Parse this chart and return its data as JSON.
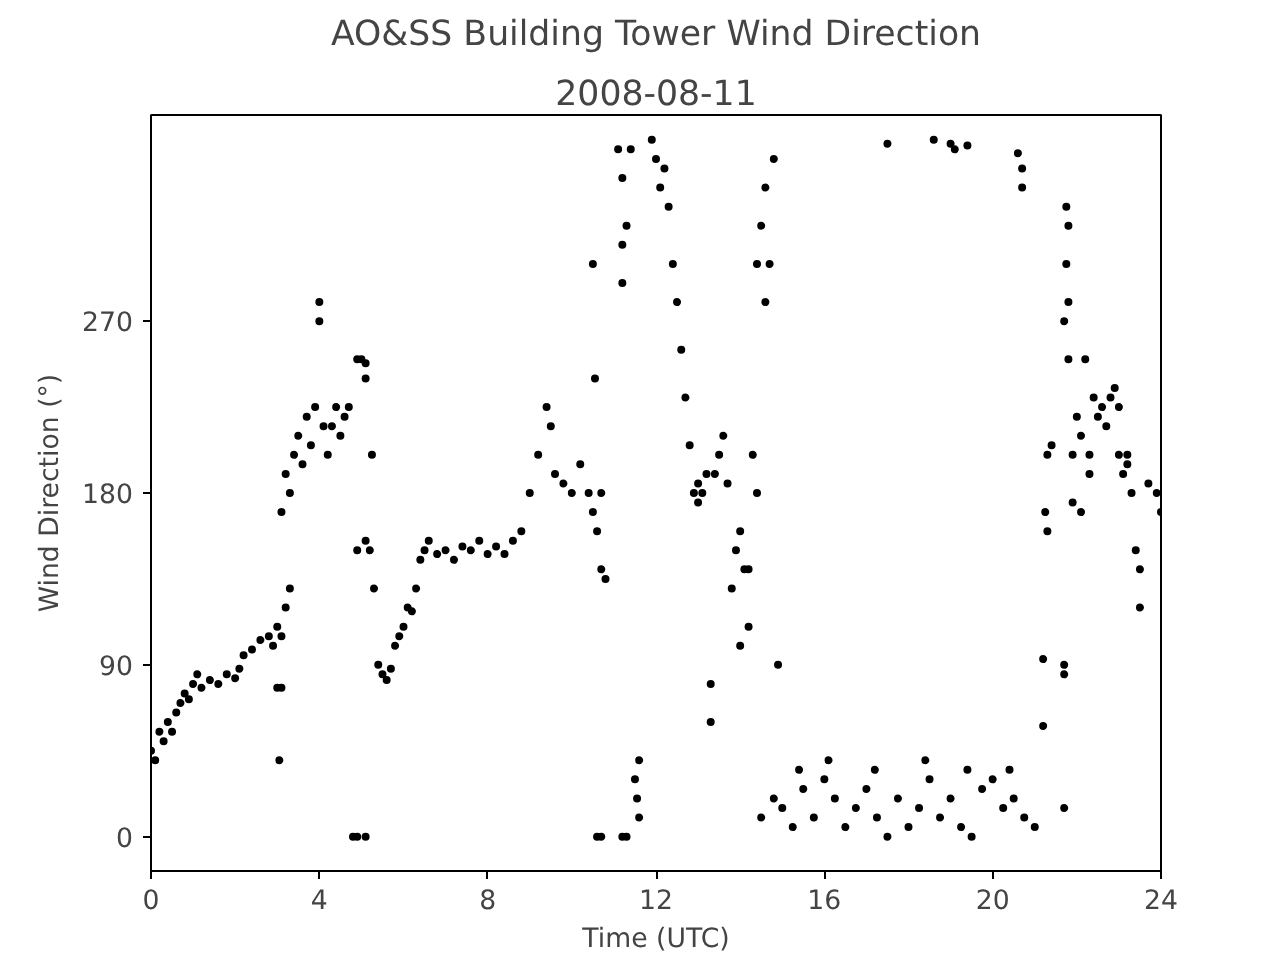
{
  "chart_data": {
    "type": "scatter",
    "title": "AO&SS Building Tower Wind Direction",
    "subtitle": "2008-08-11",
    "xlabel": "Time (UTC)",
    "ylabel": "Wind Direction (°)",
    "xlim": [
      0,
      24
    ],
    "ylim": [
      -18,
      378
    ],
    "xticks": [
      0,
      4,
      8,
      12,
      16,
      20,
      24
    ],
    "yticks": [
      0,
      90,
      180,
      270
    ],
    "grid": false,
    "marker": "circle",
    "series": [
      {
        "color": "#000000",
        "x": [
          0.0,
          0.1,
          0.2,
          0.3,
          0.4,
          0.5,
          0.6,
          0.7,
          0.8,
          0.9,
          1.0,
          1.1,
          1.2,
          1.4,
          1.6,
          1.8,
          2.0,
          2.1,
          2.2,
          2.4,
          2.6,
          2.8,
          2.9,
          3.0,
          3.1,
          3.05,
          3.0,
          3.1,
          3.2,
          3.3,
          3.1,
          3.2,
          3.3,
          3.4,
          3.5,
          3.6,
          3.7,
          3.8,
          3.9,
          4.0,
          4.0,
          4.1,
          4.2,
          4.3,
          4.4,
          4.5,
          4.6,
          4.7,
          4.8,
          4.9,
          5.1,
          4.9,
          5.0,
          5.1,
          5.1,
          4.9,
          5.1,
          5.2,
          5.25,
          5.3,
          5.4,
          5.5,
          5.6,
          5.7,
          5.8,
          5.9,
          6.0,
          6.1,
          6.2,
          6.3,
          6.4,
          6.5,
          6.6,
          6.8,
          7.0,
          7.2,
          7.4,
          7.6,
          7.8,
          8.0,
          8.2,
          8.4,
          8.6,
          8.8,
          9.0,
          9.2,
          9.4,
          9.5,
          9.6,
          9.8,
          10.0,
          10.2,
          10.4,
          10.5,
          10.6,
          10.7,
          10.8,
          10.7,
          10.5,
          10.55,
          10.6,
          10.7,
          11.2,
          11.3,
          11.2,
          11.1,
          11.2,
          11.4,
          11.3,
          11.2,
          11.5,
          11.6,
          11.55,
          11.6,
          11.9,
          12.0,
          12.1,
          12.2,
          12.3,
          12.4,
          12.5,
          12.6,
          12.7,
          12.8,
          12.9,
          13.0,
          13.1,
          13.2,
          13.0,
          13.3,
          13.4,
          13.5,
          13.6,
          13.7,
          13.8,
          13.9,
          14.0,
          14.1,
          14.2,
          14.3,
          14.4,
          14.2,
          13.3,
          14.0,
          14.4,
          14.5,
          14.6,
          14.7,
          14.8,
          14.6,
          14.9,
          14.8,
          14.5,
          15.0,
          15.25,
          15.5,
          15.75,
          16.0,
          16.25,
          16.5,
          16.75,
          17.0,
          17.25,
          17.5,
          17.75,
          18.0,
          18.25,
          18.5,
          18.75,
          19.0,
          19.25,
          19.5,
          19.75,
          20.0,
          20.25,
          20.5,
          20.75,
          21.0,
          15.4,
          16.1,
          17.2,
          18.4,
          19.4,
          20.4,
          17.5,
          18.6,
          19.0,
          19.1,
          19.4,
          20.6,
          20.7,
          20.7,
          21.2,
          21.2,
          21.25,
          21.3,
          21.3,
          21.4,
          21.7,
          21.7,
          21.7,
          21.75,
          21.8,
          21.75,
          21.8,
          21.8,
          21.7,
          21.9,
          22.0,
          22.1,
          22.2,
          22.3,
          22.4,
          22.5,
          22.6,
          22.7,
          22.8,
          22.9,
          23.0,
          23.1,
          23.2,
          23.3,
          23.4,
          23.5,
          23.5,
          23.7,
          23.9,
          24.0,
          22.3,
          22.1,
          21.9,
          23.0,
          23.2
        ],
        "values": [
          45,
          40,
          55,
          50,
          60,
          55,
          65,
          70,
          75,
          72,
          80,
          85,
          78,
          82,
          80,
          85,
          83,
          88,
          95,
          98,
          103,
          105,
          100,
          110,
          105,
          40,
          78,
          78,
          120,
          130,
          170,
          190,
          180,
          200,
          210,
          195,
          220,
          205,
          225,
          280,
          270,
          215,
          200,
          215,
          225,
          210,
          220,
          225,
          0,
          0,
          0,
          250,
          250,
          248,
          240,
          150,
          155,
          150,
          200,
          130,
          90,
          85,
          82,
          88,
          100,
          105,
          110,
          120,
          118,
          130,
          145,
          150,
          155,
          148,
          150,
          145,
          152,
          150,
          155,
          148,
          152,
          148,
          155,
          160,
          180,
          200,
          225,
          215,
          190,
          185,
          180,
          195,
          180,
          170,
          160,
          140,
          135,
          180,
          300,
          240,
          0,
          0,
          0,
          0,
          310,
          360,
          345,
          360,
          320,
          290,
          30,
          40,
          20,
          10,
          365,
          355,
          340,
          350,
          330,
          300,
          280,
          255,
          230,
          205,
          180,
          185,
          180,
          190,
          175,
          80,
          190,
          200,
          210,
          185,
          130,
          150,
          160,
          140,
          110,
          200,
          180,
          140,
          60,
          100,
          300,
          320,
          340,
          300,
          355,
          280,
          90,
          20,
          10,
          15,
          5,
          25,
          10,
          30,
          20,
          5,
          15,
          25,
          10,
          0,
          20,
          5,
          15,
          30,
          10,
          20,
          5,
          0,
          25,
          30,
          15,
          20,
          10,
          5,
          35,
          40,
          35,
          40,
          35,
          35,
          363,
          365,
          363,
          360,
          362,
          358,
          350,
          340,
          93,
          58,
          170,
          160,
          200,
          205,
          85,
          90,
          15,
          330,
          320,
          300,
          280,
          250,
          270,
          200,
          220,
          210,
          250,
          200,
          230,
          220,
          225,
          215,
          230,
          235,
          225,
          190,
          200,
          180,
          150,
          140,
          120,
          185,
          180,
          170,
          190,
          170,
          175,
          200,
          195
        ]
      }
    ]
  }
}
